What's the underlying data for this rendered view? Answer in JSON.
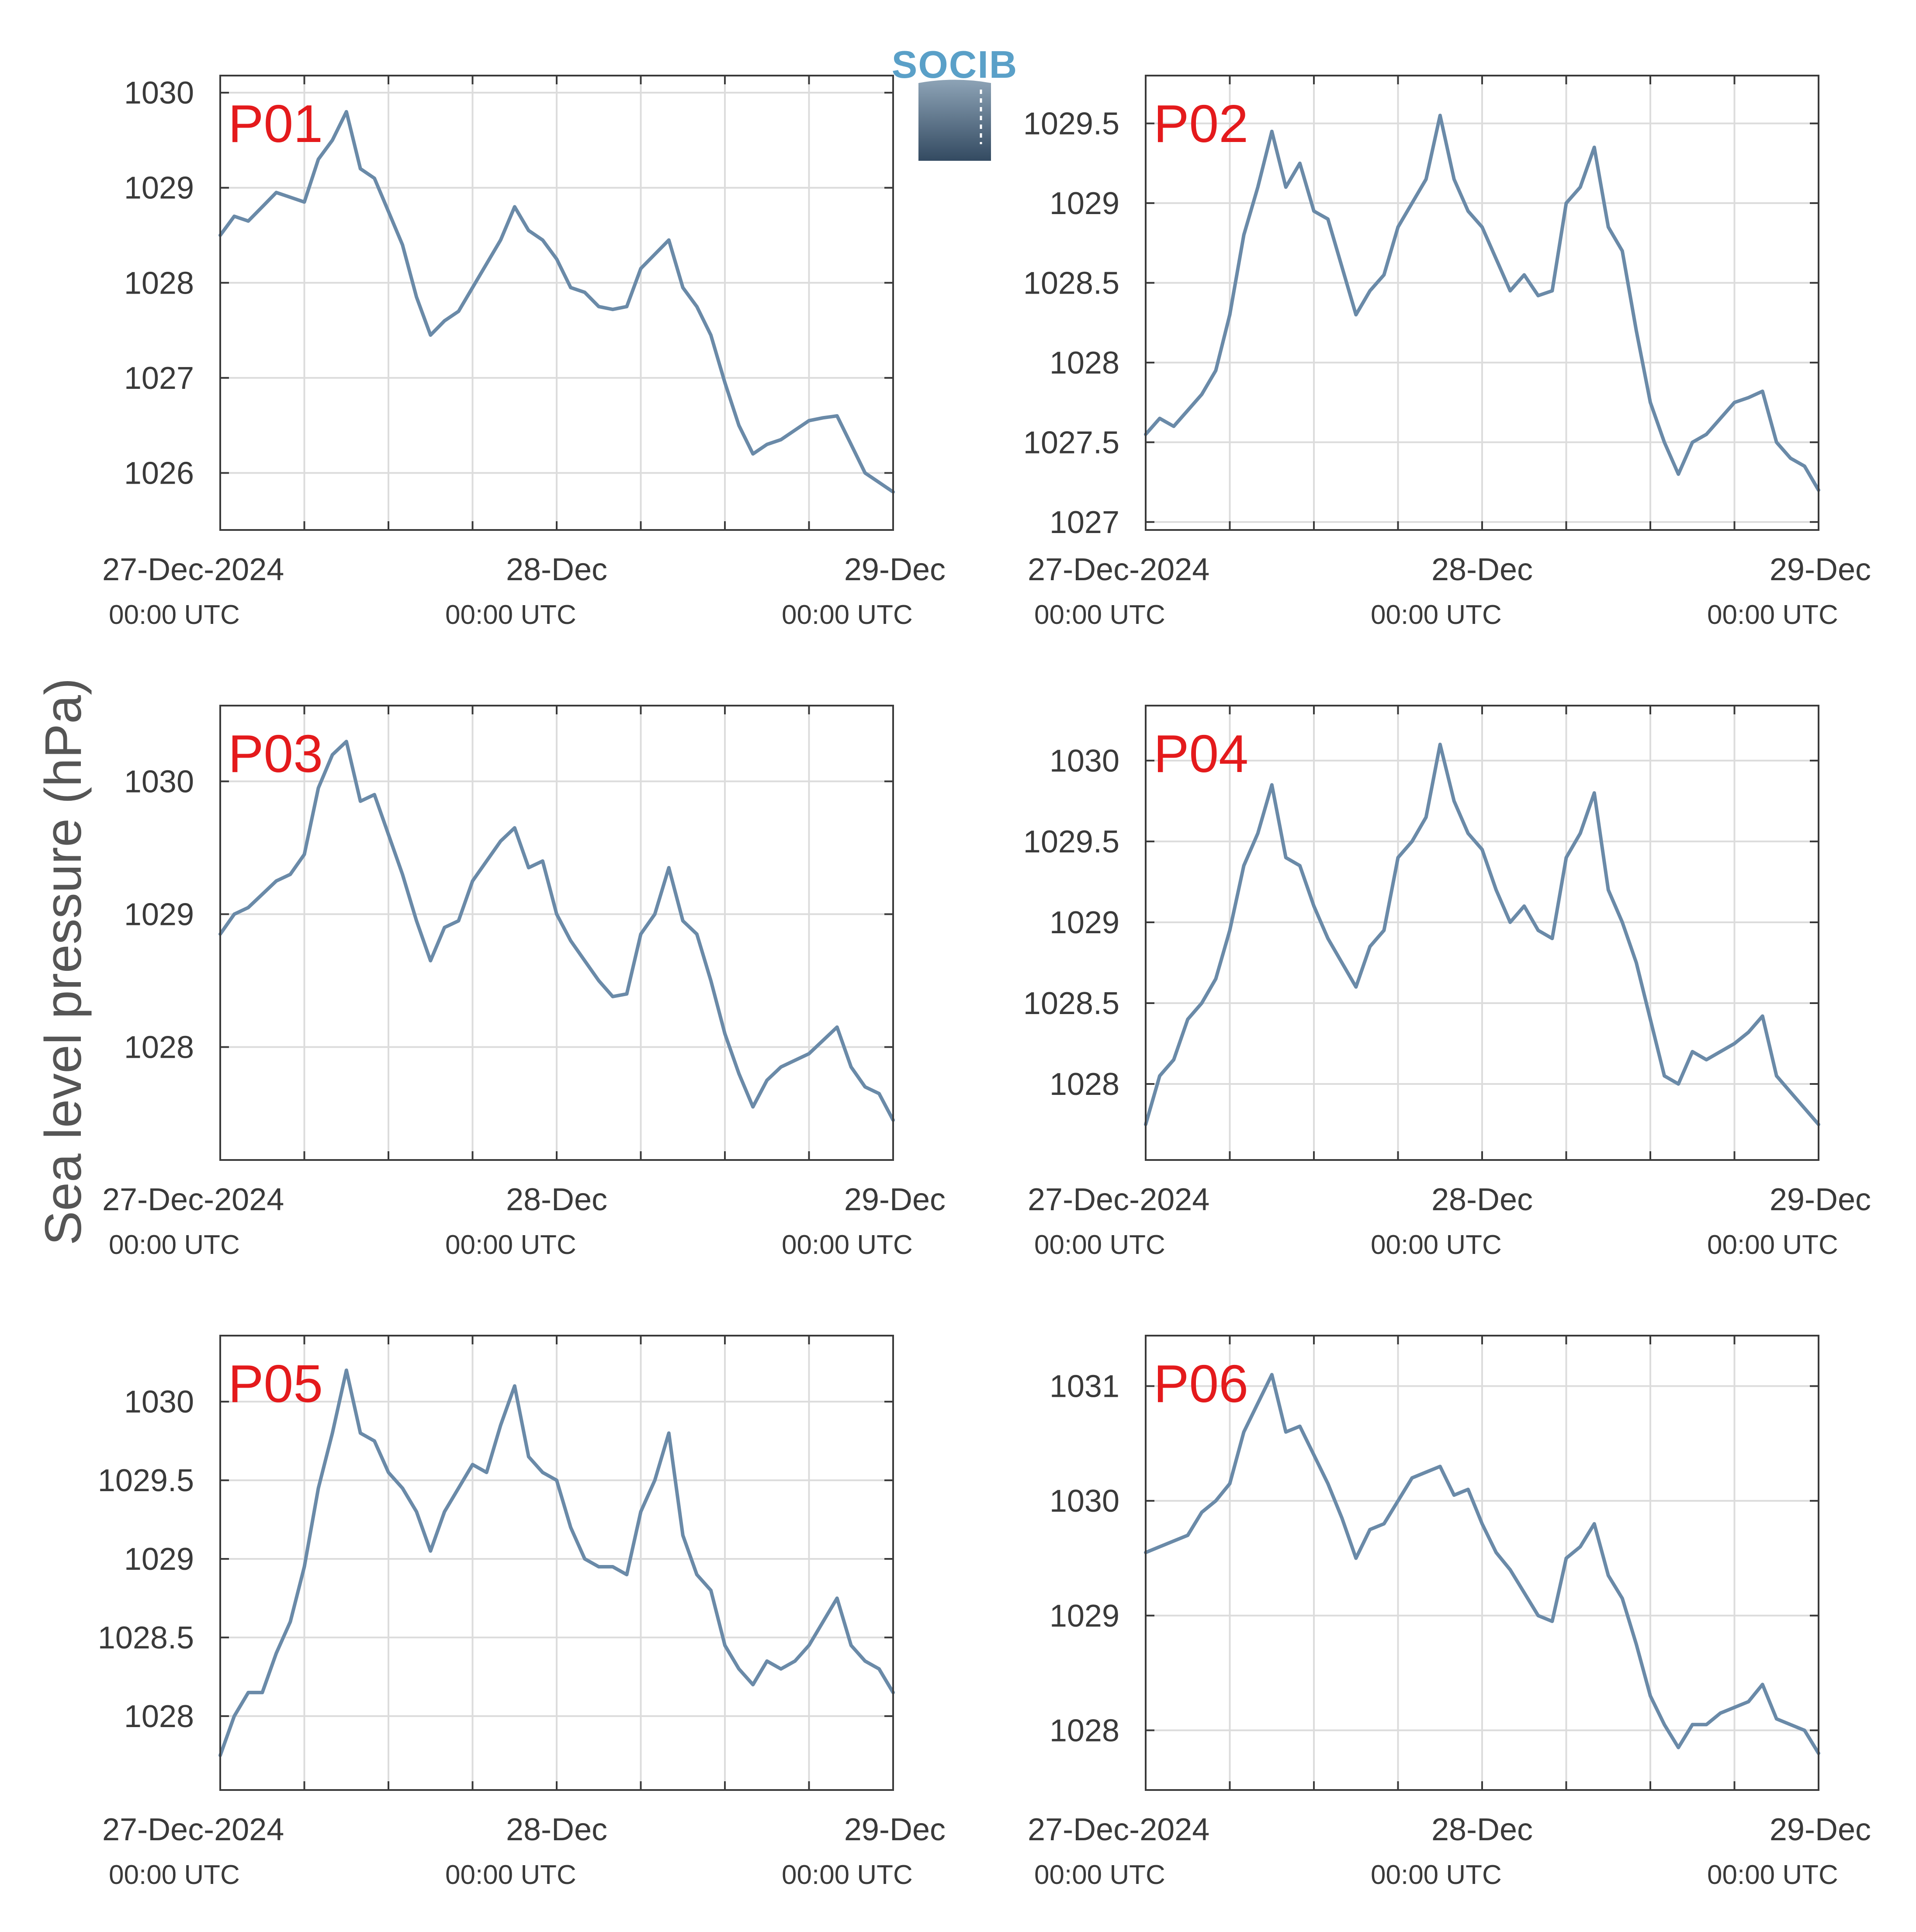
{
  "colors": {
    "line": "#6a8aa8",
    "panel_label": "#e41a1c",
    "grid": "#dcdcdc",
    "axis": "#3a3a3a"
  },
  "logo": {
    "text": "SOCIB"
  },
  "figure": {
    "ylabel": "Sea level pressure (hPa)"
  },
  "chart_data": [
    {
      "type": "line",
      "panel": "P01",
      "ylabel": "Sea level pressure (hPa)",
      "x_tick_labels": [
        {
          "date": "27-Dec-2024",
          "time": "00:00 UTC"
        },
        {
          "date": "28-Dec",
          "time": "00:00 UTC"
        },
        {
          "date": "29-Dec",
          "time": "00:00 UTC"
        }
      ],
      "x_range_hours": [
        0,
        48
      ],
      "ylim": [
        1025.4,
        1030.18
      ],
      "yticks": [
        1026,
        1027,
        1028,
        1029,
        1030
      ],
      "ytick_labels": [
        "1026",
        "1027",
        "1028",
        "1029",
        "1030"
      ],
      "grid": true,
      "series": [
        {
          "x": [
            0,
            1,
            2,
            3,
            4,
            5,
            6,
            7,
            8,
            9,
            10,
            11,
            12,
            13,
            14,
            15,
            16,
            17,
            18,
            19,
            20,
            21,
            22,
            23,
            24,
            25,
            26,
            27,
            28,
            29,
            30,
            31,
            32,
            33,
            34,
            35,
            36,
            37,
            38,
            39,
            40,
            41,
            42,
            43,
            44,
            45,
            46,
            47,
            48
          ],
          "y": [
            1028.5,
            1028.7,
            1028.65,
            1028.8,
            1028.95,
            1028.9,
            1028.85,
            1029.3,
            1029.5,
            1029.8,
            1029.2,
            1029.1,
            1028.75,
            1028.4,
            1027.85,
            1027.45,
            1027.6,
            1027.7,
            1027.95,
            1028.2,
            1028.45,
            1028.8,
            1028.55,
            1028.45,
            1028.25,
            1027.95,
            1027.9,
            1027.75,
            1027.72,
            1027.75,
            1028.15,
            1028.3,
            1028.45,
            1027.95,
            1027.75,
            1027.45,
            1026.95,
            1026.5,
            1026.2,
            1026.3,
            1026.35,
            1026.45,
            1026.55,
            1026.58,
            1026.6,
            1026.3,
            1026.0,
            1025.9,
            1025.8
          ]
        }
      ]
    },
    {
      "type": "line",
      "panel": "P02",
      "ylabel": "Sea level pressure (hPa)",
      "x_tick_labels": [
        {
          "date": "27-Dec-2024",
          "time": "00:00 UTC"
        },
        {
          "date": "28-Dec",
          "time": "00:00 UTC"
        },
        {
          "date": "29-Dec",
          "time": "00:00 UTC"
        }
      ],
      "x_range_hours": [
        0,
        48
      ],
      "ylim": [
        1026.95,
        1029.8
      ],
      "yticks": [
        1027,
        1027.5,
        1028,
        1028.5,
        1029,
        1029.5
      ],
      "ytick_labels": [
        "1027",
        "1027.5",
        "1028",
        "1028.5",
        "1029",
        "1029.5"
      ],
      "grid": true,
      "series": [
        {
          "x": [
            0,
            1,
            2,
            3,
            4,
            5,
            6,
            7,
            8,
            9,
            10,
            11,
            12,
            13,
            14,
            15,
            16,
            17,
            18,
            19,
            20,
            21,
            22,
            23,
            24,
            25,
            26,
            27,
            28,
            29,
            30,
            31,
            32,
            33,
            34,
            35,
            36,
            37,
            38,
            39,
            40,
            41,
            42,
            43,
            44,
            45,
            46,
            47,
            48
          ],
          "y": [
            1027.55,
            1027.65,
            1027.6,
            1027.7,
            1027.8,
            1027.95,
            1028.3,
            1028.8,
            1029.1,
            1029.45,
            1029.1,
            1029.25,
            1028.95,
            1028.9,
            1028.6,
            1028.3,
            1028.45,
            1028.55,
            1028.85,
            1029.0,
            1029.15,
            1029.55,
            1029.15,
            1028.95,
            1028.85,
            1028.65,
            1028.45,
            1028.55,
            1028.42,
            1028.45,
            1029.0,
            1029.1,
            1029.35,
            1028.85,
            1028.7,
            1028.2,
            1027.75,
            1027.5,
            1027.3,
            1027.5,
            1027.55,
            1027.65,
            1027.75,
            1027.78,
            1027.82,
            1027.5,
            1027.4,
            1027.35,
            1027.2
          ]
        }
      ]
    },
    {
      "type": "line",
      "panel": "P03",
      "ylabel": "Sea level pressure (hPa)",
      "x_tick_labels": [
        {
          "date": "27-Dec-2024",
          "time": "00:00 UTC"
        },
        {
          "date": "28-Dec",
          "time": "00:00 UTC"
        },
        {
          "date": "29-Dec",
          "time": "00:00 UTC"
        }
      ],
      "x_range_hours": [
        0,
        48
      ],
      "ylim": [
        1027.15,
        1030.57
      ],
      "yticks": [
        1028,
        1029,
        1030
      ],
      "ytick_labels": [
        "1028",
        "1029",
        "1030"
      ],
      "grid": true,
      "series": [
        {
          "x": [
            0,
            1,
            2,
            3,
            4,
            5,
            6,
            7,
            8,
            9,
            10,
            11,
            12,
            13,
            14,
            15,
            16,
            17,
            18,
            19,
            20,
            21,
            22,
            23,
            24,
            25,
            26,
            27,
            28,
            29,
            30,
            31,
            32,
            33,
            34,
            35,
            36,
            37,
            38,
            39,
            40,
            41,
            42,
            43,
            44,
            45,
            46,
            47,
            48
          ],
          "y": [
            1028.85,
            1029.0,
            1029.05,
            1029.15,
            1029.25,
            1029.3,
            1029.45,
            1029.95,
            1030.2,
            1030.3,
            1029.85,
            1029.9,
            1029.6,
            1029.3,
            1028.95,
            1028.65,
            1028.9,
            1028.95,
            1029.25,
            1029.4,
            1029.55,
            1029.65,
            1029.35,
            1029.4,
            1029.0,
            1028.8,
            1028.65,
            1028.5,
            1028.38,
            1028.4,
            1028.85,
            1029.0,
            1029.35,
            1028.95,
            1028.85,
            1028.5,
            1028.1,
            1027.8,
            1027.55,
            1027.75,
            1027.85,
            1027.9,
            1027.95,
            1028.05,
            1028.15,
            1027.85,
            1027.7,
            1027.65,
            1027.45
          ]
        }
      ]
    },
    {
      "type": "line",
      "panel": "P04",
      "ylabel": "Sea level pressure (hPa)",
      "x_tick_labels": [
        {
          "date": "27-Dec-2024",
          "time": "00:00 UTC"
        },
        {
          "date": "28-Dec",
          "time": "00:00 UTC"
        },
        {
          "date": "29-Dec",
          "time": "00:00 UTC"
        }
      ],
      "x_range_hours": [
        0,
        48
      ],
      "ylim": [
        1027.53,
        1030.34
      ],
      "yticks": [
        1028,
        1028.5,
        1029,
        1029.5,
        1030
      ],
      "ytick_labels": [
        "1028",
        "1028.5",
        "1029",
        "1029.5",
        "1030"
      ],
      "grid": true,
      "series": [
        {
          "x": [
            0,
            1,
            2,
            3,
            4,
            5,
            6,
            7,
            8,
            9,
            10,
            11,
            12,
            13,
            14,
            15,
            16,
            17,
            18,
            19,
            20,
            21,
            22,
            23,
            24,
            25,
            26,
            27,
            28,
            29,
            30,
            31,
            32,
            33,
            34,
            35,
            36,
            37,
            38,
            39,
            40,
            41,
            42,
            43,
            44,
            45,
            46,
            47,
            48
          ],
          "y": [
            1027.75,
            1028.05,
            1028.15,
            1028.4,
            1028.5,
            1028.65,
            1028.95,
            1029.35,
            1029.55,
            1029.85,
            1029.4,
            1029.35,
            1029.1,
            1028.9,
            1028.75,
            1028.6,
            1028.85,
            1028.95,
            1029.4,
            1029.5,
            1029.65,
            1030.1,
            1029.75,
            1029.55,
            1029.45,
            1029.2,
            1029.0,
            1029.1,
            1028.95,
            1028.9,
            1029.4,
            1029.55,
            1029.8,
            1029.2,
            1029.0,
            1028.75,
            1028.4,
            1028.05,
            1028.0,
            1028.2,
            1028.15,
            1028.2,
            1028.25,
            1028.32,
            1028.42,
            1028.05,
            1027.95,
            1027.85,
            1027.75
          ]
        }
      ]
    },
    {
      "type": "line",
      "panel": "P05",
      "ylabel": "Sea level pressure (hPa)",
      "x_tick_labels": [
        {
          "date": "27-Dec-2024",
          "time": "00:00 UTC"
        },
        {
          "date": "28-Dec",
          "time": "00:00 UTC"
        },
        {
          "date": "29-Dec",
          "time": "00:00 UTC"
        }
      ],
      "x_range_hours": [
        0,
        48
      ],
      "ylim": [
        1027.53,
        1030.42
      ],
      "yticks": [
        1028,
        1028.5,
        1029,
        1029.5,
        1030
      ],
      "ytick_labels": [
        "1028",
        "1028.5",
        "1029",
        "1029.5",
        "1030"
      ],
      "grid": true,
      "series": [
        {
          "x": [
            0,
            1,
            2,
            3,
            4,
            5,
            6,
            7,
            8,
            9,
            10,
            11,
            12,
            13,
            14,
            15,
            16,
            17,
            18,
            19,
            20,
            21,
            22,
            23,
            24,
            25,
            26,
            27,
            28,
            29,
            30,
            31,
            32,
            33,
            34,
            35,
            36,
            37,
            38,
            39,
            40,
            41,
            42,
            43,
            44,
            45,
            46,
            47,
            48
          ],
          "y": [
            1027.75,
            1028.0,
            1028.15,
            1028.15,
            1028.4,
            1028.6,
            1028.95,
            1029.45,
            1029.8,
            1030.2,
            1029.8,
            1029.75,
            1029.55,
            1029.45,
            1029.3,
            1029.05,
            1029.3,
            1029.45,
            1029.6,
            1029.55,
            1029.85,
            1030.1,
            1029.65,
            1029.55,
            1029.5,
            1029.2,
            1029.0,
            1028.95,
            1028.95,
            1028.9,
            1029.3,
            1029.5,
            1029.8,
            1029.15,
            1028.9,
            1028.8,
            1028.45,
            1028.3,
            1028.2,
            1028.35,
            1028.3,
            1028.35,
            1028.45,
            1028.6,
            1028.75,
            1028.45,
            1028.35,
            1028.3,
            1028.15
          ]
        }
      ]
    },
    {
      "type": "line",
      "panel": "P06",
      "ylabel": "Sea level pressure (hPa)",
      "x_tick_labels": [
        {
          "date": "27-Dec-2024",
          "time": "00:00 UTC"
        },
        {
          "date": "28-Dec",
          "time": "00:00 UTC"
        },
        {
          "date": "29-Dec",
          "time": "00:00 UTC"
        }
      ],
      "x_range_hours": [
        0,
        48
      ],
      "ylim": [
        1027.48,
        1031.44
      ],
      "yticks": [
        1028,
        1029,
        1030,
        1031
      ],
      "ytick_labels": [
        "1028",
        "1029",
        "1030",
        "1031"
      ],
      "grid": true,
      "series": [
        {
          "x": [
            0,
            1,
            2,
            3,
            4,
            5,
            6,
            7,
            8,
            9,
            10,
            11,
            12,
            13,
            14,
            15,
            16,
            17,
            18,
            19,
            20,
            21,
            22,
            23,
            24,
            25,
            26,
            27,
            28,
            29,
            30,
            31,
            32,
            33,
            34,
            35,
            36,
            37,
            38,
            39,
            40,
            41,
            42,
            43,
            44,
            45,
            46,
            47,
            48
          ],
          "y": [
            1029.55,
            1029.6,
            1029.65,
            1029.7,
            1029.9,
            1030.0,
            1030.15,
            1030.6,
            1030.85,
            1031.1,
            1030.6,
            1030.65,
            1030.4,
            1030.15,
            1029.85,
            1029.5,
            1029.75,
            1029.8,
            1030.0,
            1030.2,
            1030.25,
            1030.3,
            1030.05,
            1030.1,
            1029.8,
            1029.55,
            1029.4,
            1029.2,
            1029.0,
            1028.95,
            1029.5,
            1029.6,
            1029.8,
            1029.35,
            1029.15,
            1028.75,
            1028.3,
            1028.05,
            1027.85,
            1028.05,
            1028.05,
            1028.15,
            1028.2,
            1028.25,
            1028.4,
            1028.1,
            1028.05,
            1028.0,
            1027.8
          ]
        }
      ]
    }
  ]
}
